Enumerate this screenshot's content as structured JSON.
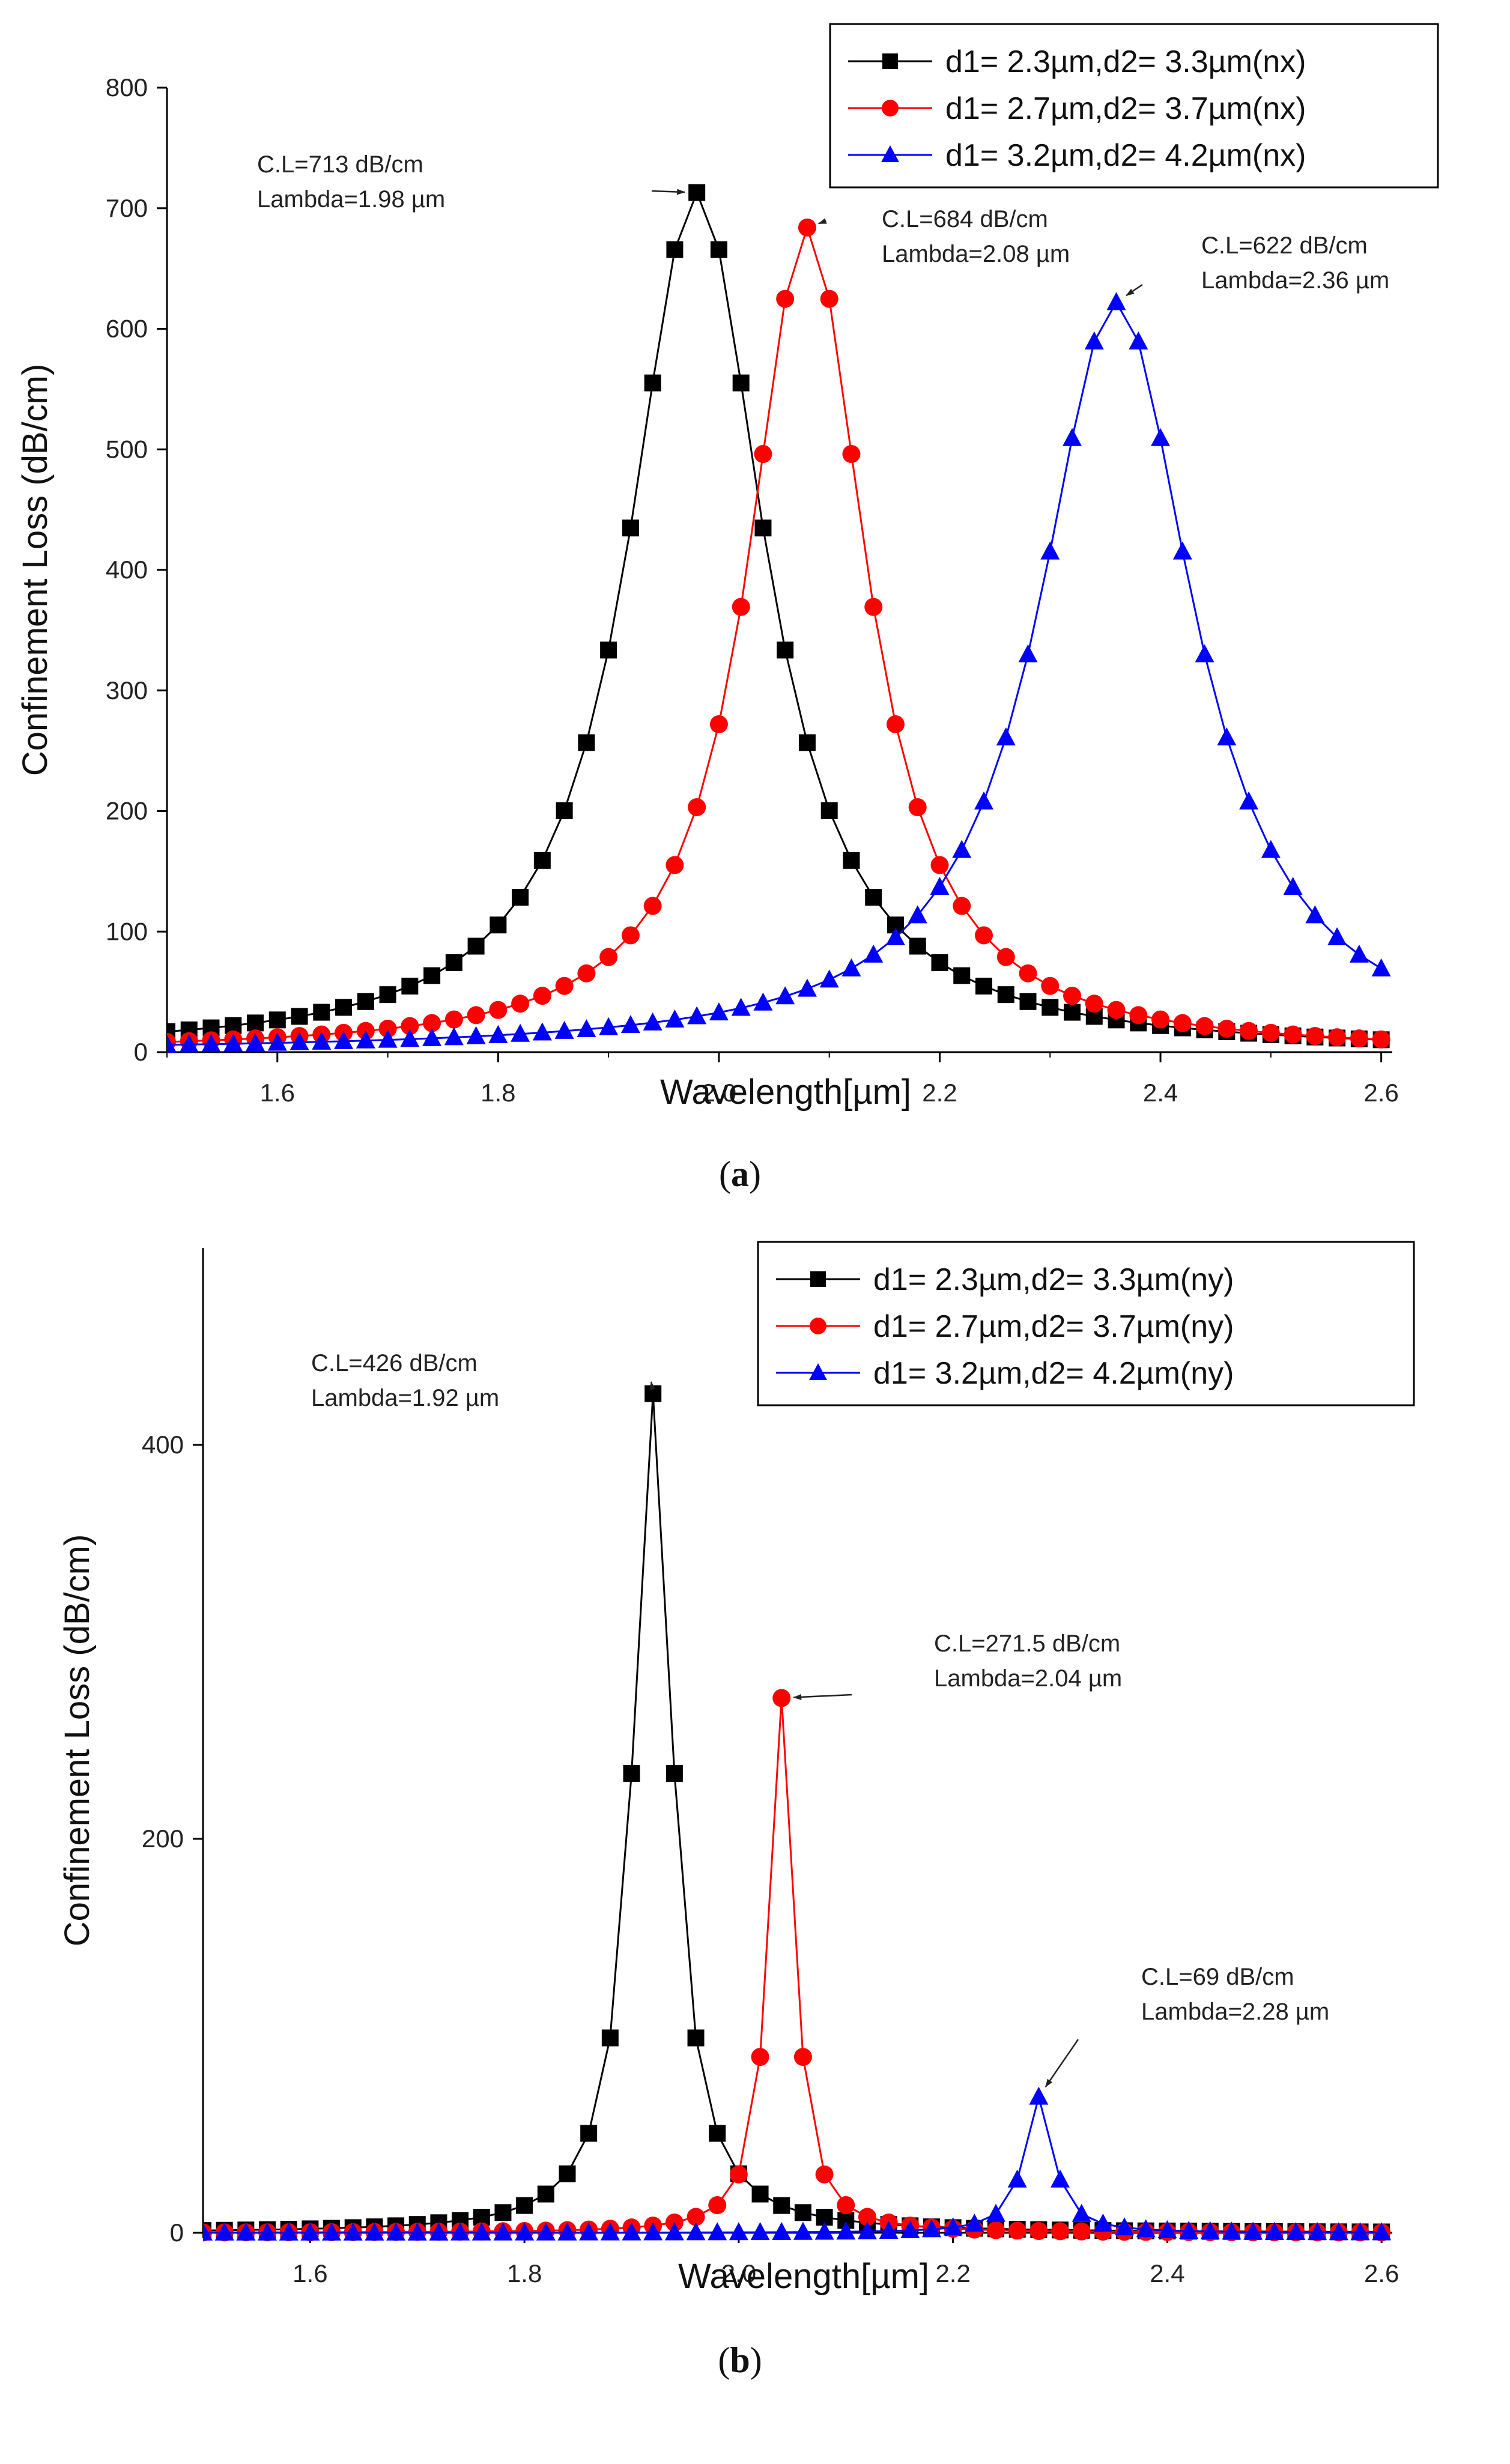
{
  "chart_data": [
    {
      "type": "line",
      "panel_label": "a",
      "xlabel": "Wavelength[µm]",
      "ylabel": "Confinement Loss (dB/cm)",
      "xlim": [
        1.5,
        2.61
      ],
      "ylim": [
        0,
        800
      ],
      "xticks": [
        1.6,
        1.8,
        2.0,
        2.2,
        2.4,
        2.6
      ],
      "yticks": [
        0,
        100,
        200,
        300,
        400,
        500,
        600,
        700,
        800
      ],
      "legend_position": "top-right",
      "series": [
        {
          "name": "d1= 2.3µm,d2= 3.3µm(nx)",
          "color": "#000000",
          "marker": "square",
          "peak": 1.98,
          "peak_value": 713,
          "hwhm": 0.075,
          "floor_at_start": 5
        },
        {
          "name": "d1= 2.7µm,d2= 3.7µm(nx)",
          "color": "#ff0000",
          "marker": "circle",
          "peak": 2.08,
          "peak_value": 684,
          "hwhm": 0.065,
          "floor_at_start": 2
        },
        {
          "name": "d1= 3.2µm,d2= 4.2µm(nx)",
          "color": "#0000ff",
          "marker": "triangle",
          "peak": 2.36,
          "peak_value": 622,
          "hwhm": 0.085,
          "floor_at_start": 1
        }
      ],
      "annotations": [
        {
          "line1": "C.L=713 dB/cm",
          "line2": "Lambda=1.98 µm",
          "x": 1.98,
          "y": 713
        },
        {
          "line1": "C.L=684 dB/cm",
          "line2": "Lambda=2.08 µm",
          "x": 2.08,
          "y": 684
        },
        {
          "line1": "C.L=622 dB/cm",
          "line2": "Lambda=2.36 µm",
          "x": 2.36,
          "y": 622
        }
      ]
    },
    {
      "type": "line",
      "panel_label": "b",
      "xlabel": "Wavelength[µm]",
      "ylabel": "Confinement Loss (dB/cm)",
      "xlim": [
        1.5,
        2.61
      ],
      "ylim": [
        0,
        500
      ],
      "xticks": [
        1.6,
        1.8,
        2.0,
        2.2,
        2.4,
        2.6
      ],
      "yticks": [
        0,
        200,
        400
      ],
      "legend_position": "top-right",
      "series": [
        {
          "name": "d1= 2.3µm,d2= 3.3µm(ny)",
          "color": "#000000",
          "marker": "square",
          "peak": 1.92,
          "peak_value": 426,
          "hwhm": 0.022,
          "floor_at_start": 1
        },
        {
          "name": "d1= 2.7µm,d2= 3.7µm(ny)",
          "color": "#ff0000",
          "marker": "circle",
          "peak": 2.04,
          "peak_value": 271.5,
          "hwhm": 0.014,
          "floor_at_start": 1
        },
        {
          "name": "d1= 3.2µm,d2= 4.2µm(ny)",
          "color": "#0000ff",
          "marker": "triangle",
          "peak": 2.28,
          "peak_value": 69,
          "hwhm": 0.016,
          "floor_at_start": 1
        }
      ],
      "annotations": [
        {
          "line1": "C.L=426 dB/cm",
          "line2": "Lambda=1.92 µm",
          "x": 1.92,
          "y": 426
        },
        {
          "line1": "C.L=271.5 dB/cm",
          "line2": "Lambda=2.04 µm",
          "x": 2.04,
          "y": 271.5
        },
        {
          "line1": "C.L=69 dB/cm",
          "line2": "Lambda=2.28 µm",
          "x": 2.28,
          "y": 69
        }
      ]
    }
  ]
}
